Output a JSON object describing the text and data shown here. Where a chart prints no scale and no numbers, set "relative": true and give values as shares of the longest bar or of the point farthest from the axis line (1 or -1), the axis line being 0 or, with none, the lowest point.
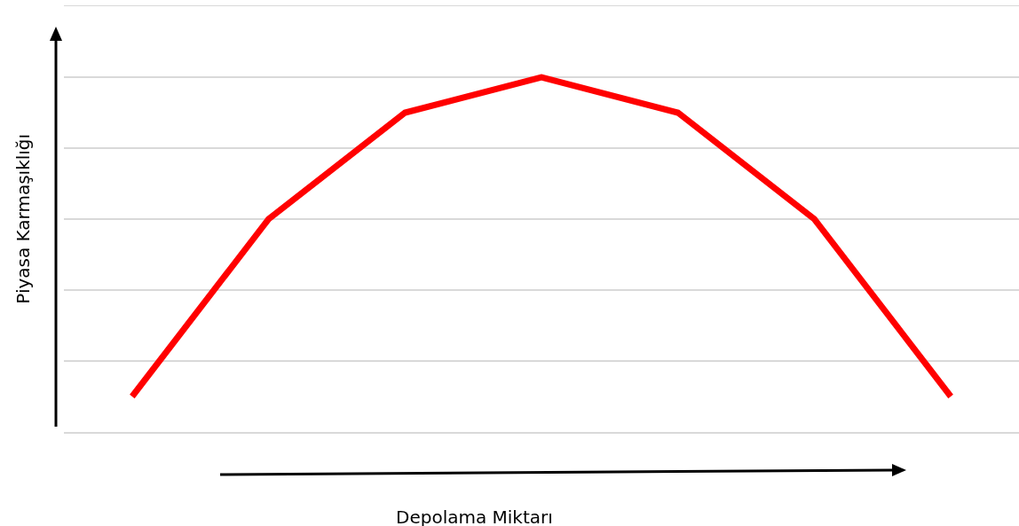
{
  "chart_data": {
    "type": "line",
    "relative": true,
    "xlabel": "Depolama Miktarı",
    "ylabel": "Piyasa Karmaşıklığı",
    "categories": [
      null,
      null,
      null,
      null,
      null,
      null,
      null
    ],
    "series": [
      {
        "color": "#ff0000",
        "values": [
          0.1,
          0.6,
          0.9,
          1,
          0.9,
          0.6,
          0.1
        ]
      }
    ],
    "grid": "y",
    "marker": "none",
    "line_style": "solid"
  }
}
